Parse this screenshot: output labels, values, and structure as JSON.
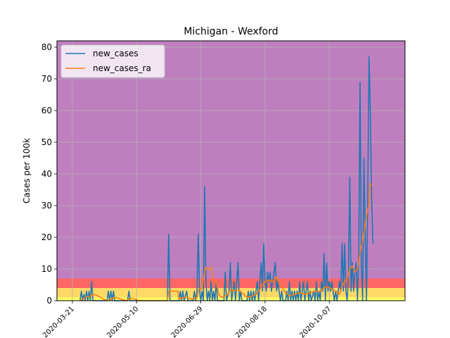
{
  "chart_data": {
    "type": "line",
    "title": "Michigan - Wexford",
    "xlabel": "",
    "ylabel": "Cases per 100k",
    "ylim": [
      0,
      82
    ],
    "xlim": [
      "2020-03-09",
      "2020-12-05"
    ],
    "grid": true,
    "legend_position": "top-left",
    "yticks": [
      0,
      10,
      20,
      30,
      40,
      50,
      60,
      70,
      80
    ],
    "xticks": [
      "2020-03-21",
      "2020-05-10",
      "2020-06-29",
      "2020-08-18",
      "2020-10-07"
    ],
    "risk_bands": [
      {
        "from": 0,
        "to": 1,
        "color": "#ffff66"
      },
      {
        "from": 1,
        "to": 4,
        "color": "#ffd966"
      },
      {
        "from": 4,
        "to": 7,
        "color": "#ff6666"
      },
      {
        "from": 7,
        "to": 82,
        "color": "#bf7fbf"
      }
    ],
    "series": [
      {
        "name": "new_cases",
        "color": "#1f77b4",
        "points": [
          [
            "2020-03-27",
            0
          ],
          [
            "2020-03-28",
            3
          ],
          [
            "2020-03-29",
            0
          ],
          [
            "2020-03-30",
            2
          ],
          [
            "2020-03-31",
            0
          ],
          [
            "2020-04-01",
            3
          ],
          [
            "2020-04-02",
            0
          ],
          [
            "2020-04-03",
            3
          ],
          [
            "2020-04-04",
            0
          ],
          [
            "2020-04-05",
            6
          ],
          [
            "2020-04-06",
            0
          ],
          [
            "2020-04-17",
            0
          ],
          [
            "2020-04-18",
            3
          ],
          [
            "2020-04-19",
            0
          ],
          [
            "2020-04-20",
            3
          ],
          [
            "2020-04-21",
            0
          ],
          [
            "2020-04-22",
            3
          ],
          [
            "2020-04-23",
            0
          ],
          [
            "2020-05-03",
            0
          ],
          [
            "2020-05-04",
            3
          ],
          [
            "2020-05-05",
            0
          ],
          [
            "2020-06-03",
            0
          ],
          [
            "2020-06-04",
            21
          ],
          [
            "2020-06-05",
            0
          ],
          [
            "2020-06-12",
            0
          ],
          [
            "2020-06-13",
            3
          ],
          [
            "2020-06-14",
            0
          ],
          [
            "2020-06-15",
            3
          ],
          [
            "2020-06-16",
            0
          ],
          [
            "2020-06-18",
            3
          ],
          [
            "2020-06-19",
            0
          ],
          [
            "2020-06-23",
            0
          ],
          [
            "2020-06-24",
            3
          ],
          [
            "2020-06-25",
            0
          ],
          [
            "2020-06-26",
            3
          ],
          [
            "2020-06-27",
            21
          ],
          [
            "2020-06-28",
            3
          ],
          [
            "2020-06-29",
            0
          ],
          [
            "2020-06-30",
            3
          ],
          [
            "2020-07-01",
            0
          ],
          [
            "2020-07-02",
            36
          ],
          [
            "2020-07-03",
            6
          ],
          [
            "2020-07-04",
            0
          ],
          [
            "2020-07-05",
            3
          ],
          [
            "2020-07-06",
            0
          ],
          [
            "2020-07-07",
            6
          ],
          [
            "2020-07-08",
            0
          ],
          [
            "2020-07-09",
            3
          ],
          [
            "2020-07-10",
            0
          ],
          [
            "2020-07-11",
            6
          ],
          [
            "2020-07-12",
            0
          ],
          [
            "2020-07-17",
            0
          ],
          [
            "2020-07-18",
            9
          ],
          [
            "2020-07-19",
            0
          ],
          [
            "2020-07-21",
            3
          ],
          [
            "2020-07-22",
            12
          ],
          [
            "2020-07-23",
            0
          ],
          [
            "2020-07-24",
            3
          ],
          [
            "2020-07-25",
            6
          ],
          [
            "2020-07-26",
            0
          ],
          [
            "2020-07-28",
            12
          ],
          [
            "2020-07-29",
            0
          ],
          [
            "2020-07-30",
            3
          ],
          [
            "2020-07-31",
            0
          ],
          [
            "2020-08-04",
            0
          ],
          [
            "2020-08-05",
            3
          ],
          [
            "2020-08-06",
            0
          ],
          [
            "2020-08-07",
            3
          ],
          [
            "2020-08-08",
            0
          ],
          [
            "2020-08-09",
            3
          ],
          [
            "2020-08-10",
            0
          ],
          [
            "2020-08-11",
            3
          ],
          [
            "2020-08-12",
            6
          ],
          [
            "2020-08-13",
            0
          ],
          [
            "2020-08-14",
            6
          ],
          [
            "2020-08-15",
            12
          ],
          [
            "2020-08-16",
            3
          ],
          [
            "2020-08-17",
            18
          ],
          [
            "2020-08-18",
            6
          ],
          [
            "2020-08-19",
            3
          ],
          [
            "2020-08-20",
            9
          ],
          [
            "2020-08-21",
            6
          ],
          [
            "2020-08-22",
            9
          ],
          [
            "2020-08-23",
            3
          ],
          [
            "2020-08-24",
            6
          ],
          [
            "2020-08-25",
            9
          ],
          [
            "2020-08-26",
            12
          ],
          [
            "2020-08-27",
            3
          ],
          [
            "2020-08-28",
            6
          ],
          [
            "2020-08-29",
            3
          ],
          [
            "2020-08-30",
            0
          ],
          [
            "2020-08-31",
            3
          ],
          [
            "2020-09-01",
            0
          ],
          [
            "2020-09-03",
            0
          ],
          [
            "2020-09-04",
            3
          ],
          [
            "2020-09-05",
            0
          ],
          [
            "2020-09-06",
            6
          ],
          [
            "2020-09-07",
            0
          ],
          [
            "2020-09-08",
            3
          ],
          [
            "2020-09-09",
            0
          ],
          [
            "2020-09-10",
            3
          ],
          [
            "2020-09-11",
            0
          ],
          [
            "2020-09-12",
            3
          ],
          [
            "2020-09-13",
            0
          ],
          [
            "2020-09-14",
            6
          ],
          [
            "2020-09-15",
            0
          ],
          [
            "2020-09-17",
            6
          ],
          [
            "2020-09-18",
            0
          ],
          [
            "2020-09-19",
            3
          ],
          [
            "2020-09-20",
            6
          ],
          [
            "2020-09-21",
            0
          ],
          [
            "2020-09-22",
            3
          ],
          [
            "2020-09-23",
            0
          ],
          [
            "2020-09-25",
            3
          ],
          [
            "2020-09-26",
            0
          ],
          [
            "2020-09-27",
            6
          ],
          [
            "2020-09-28",
            0
          ],
          [
            "2020-09-29",
            3
          ],
          [
            "2020-09-30",
            0
          ],
          [
            "2020-10-01",
            6
          ],
          [
            "2020-10-02",
            3
          ],
          [
            "2020-10-03",
            15
          ],
          [
            "2020-10-04",
            0
          ],
          [
            "2020-10-05",
            12
          ],
          [
            "2020-10-06",
            3
          ],
          [
            "2020-10-07",
            6
          ],
          [
            "2020-10-08",
            3
          ],
          [
            "2020-10-09",
            6
          ],
          [
            "2020-10-10",
            3
          ],
          [
            "2020-10-11",
            0
          ],
          [
            "2020-10-12",
            3
          ],
          [
            "2020-10-13",
            0
          ],
          [
            "2020-10-14",
            3
          ],
          [
            "2020-10-15",
            6
          ],
          [
            "2020-10-16",
            3
          ],
          [
            "2020-10-17",
            18
          ],
          [
            "2020-10-18",
            3
          ],
          [
            "2020-10-19",
            18
          ],
          [
            "2020-10-20",
            3
          ],
          [
            "2020-10-21",
            0
          ],
          [
            "2020-10-22",
            9
          ],
          [
            "2020-10-23",
            39
          ],
          [
            "2020-10-24",
            3
          ],
          [
            "2020-10-25",
            12
          ],
          [
            "2020-10-26",
            3
          ],
          [
            "2020-10-27",
            9
          ],
          [
            "2020-10-28",
            12
          ],
          [
            "2020-10-29",
            0
          ],
          [
            "2020-10-30",
            15
          ],
          [
            "2020-10-31",
            69
          ],
          [
            "2020-11-01",
            12
          ],
          [
            "2020-11-02",
            0
          ],
          [
            "2020-11-03",
            45
          ],
          [
            "2020-11-04",
            21
          ],
          [
            "2020-11-05",
            0
          ],
          [
            "2020-11-06",
            33
          ],
          [
            "2020-11-07",
            77
          ],
          [
            "2020-11-08",
            60
          ],
          [
            "2020-11-09",
            33
          ],
          [
            "2020-11-10",
            18
          ]
        ]
      },
      {
        "name": "new_cases_ra",
        "color": "#ff7f0e",
        "points": [
          [
            "2020-03-27",
            0
          ],
          [
            "2020-03-31",
            1
          ],
          [
            "2020-04-04",
            1.5
          ],
          [
            "2020-04-07",
            2
          ],
          [
            "2020-04-10",
            1.5
          ],
          [
            "2020-04-14",
            0.5
          ],
          [
            "2020-04-18",
            0
          ],
          [
            "2020-04-21",
            0.8
          ],
          [
            "2020-04-24",
            1
          ],
          [
            "2020-04-28",
            0.5
          ],
          [
            "2020-05-02",
            0
          ],
          [
            "2020-05-05",
            0.8
          ],
          [
            "2020-05-09",
            0.5
          ],
          [
            "2020-05-12",
            0
          ],
          [
            "2020-06-03",
            0
          ],
          [
            "2020-06-04",
            3
          ],
          [
            "2020-06-11",
            3
          ],
          [
            "2020-06-12",
            0.5
          ],
          [
            "2020-06-15",
            1
          ],
          [
            "2020-06-18",
            1
          ],
          [
            "2020-06-22",
            0.5
          ],
          [
            "2020-06-26",
            1
          ],
          [
            "2020-06-27",
            3.5
          ],
          [
            "2020-06-29",
            3.5
          ],
          [
            "2020-06-30",
            4
          ],
          [
            "2020-07-02",
            9
          ],
          [
            "2020-07-03",
            10.5
          ],
          [
            "2020-07-05",
            10
          ],
          [
            "2020-07-07",
            10.5
          ],
          [
            "2020-07-09",
            6
          ],
          [
            "2020-07-11",
            6
          ],
          [
            "2020-07-13",
            2
          ],
          [
            "2020-07-15",
            1
          ],
          [
            "2020-07-18",
            1.5
          ],
          [
            "2020-07-20",
            2
          ],
          [
            "2020-07-22",
            3.5
          ],
          [
            "2020-07-25",
            3
          ],
          [
            "2020-07-28",
            3.5
          ],
          [
            "2020-07-31",
            2.5
          ],
          [
            "2020-08-04",
            1
          ],
          [
            "2020-08-08",
            1.5
          ],
          [
            "2020-08-11",
            2
          ],
          [
            "2020-08-14",
            3.5
          ],
          [
            "2020-08-16",
            5
          ],
          [
            "2020-08-18",
            6
          ],
          [
            "2020-08-21",
            6.5
          ],
          [
            "2020-08-24",
            6
          ],
          [
            "2020-08-27",
            7.5
          ],
          [
            "2020-08-30",
            5
          ],
          [
            "2020-09-02",
            3
          ],
          [
            "2020-09-06",
            1.5
          ],
          [
            "2020-09-10",
            2
          ],
          [
            "2020-09-14",
            2.5
          ],
          [
            "2020-09-18",
            2
          ],
          [
            "2020-09-22",
            2.5
          ],
          [
            "2020-09-26",
            3
          ],
          [
            "2020-09-30",
            3
          ],
          [
            "2020-10-03",
            4
          ],
          [
            "2020-10-06",
            4.5
          ],
          [
            "2020-10-09",
            3.5
          ],
          [
            "2020-10-12",
            3
          ],
          [
            "2020-10-15",
            2
          ],
          [
            "2020-10-17",
            4.5
          ],
          [
            "2020-10-19",
            6
          ],
          [
            "2020-10-21",
            7
          ],
          [
            "2020-10-23",
            10
          ],
          [
            "2020-10-25",
            11
          ],
          [
            "2020-10-27",
            9
          ],
          [
            "2020-10-29",
            10
          ],
          [
            "2020-10-31",
            15
          ],
          [
            "2020-11-02",
            19
          ],
          [
            "2020-11-04",
            24
          ],
          [
            "2020-11-06",
            29
          ],
          [
            "2020-11-07",
            30
          ],
          [
            "2020-11-08",
            37
          ],
          [
            "2020-11-09",
            36.5
          ]
        ]
      }
    ]
  }
}
